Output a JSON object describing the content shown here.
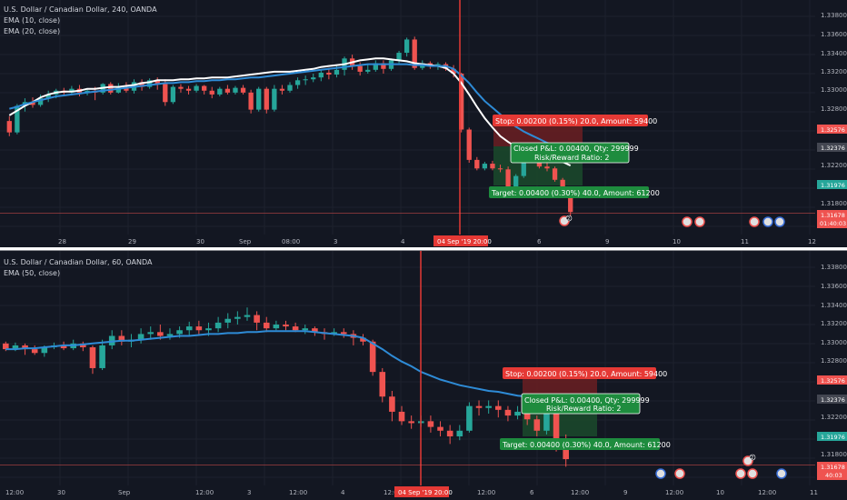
{
  "colors": {
    "background": "#131722",
    "grid": "#1e222d",
    "up": "#26a69a",
    "down": "#ef5350",
    "ema_fast": "#ffffff",
    "ema_slow": "#2e8bd6",
    "stop_zone": "#6b1f22",
    "target_zone": "#1b4a2b",
    "marker_line": "#e53935",
    "separator": "#ffffff"
  },
  "panels": [
    {
      "title": "U.S. Dollar / Canadian Dollar, 240, OANDA",
      "indicators": [
        "EMA (10, close)",
        "EMA (20, close)"
      ],
      "y_ticks": [
        "1.33800",
        "1.33600",
        "1.33400",
        "1.33200",
        "1.33000",
        "1.32800",
        "1.32576",
        "1.32376",
        "1.32200",
        "1.31976",
        "1.31800",
        "1.31678"
      ],
      "price_tags": [
        {
          "text": "1.32576",
          "color": "#ef5350"
        },
        {
          "text": "1.32376",
          "color": "#434651"
        },
        {
          "text": "1.31976",
          "color": "#26a69a"
        },
        {
          "text": "1.31678",
          "color": "#ef5350"
        }
      ],
      "countdown": "01:40:03",
      "x_ticks": [
        "28",
        "29",
        "30",
        "Sep",
        "08:00",
        "3",
        "4",
        "6",
        "9",
        "10",
        "11",
        "12"
      ],
      "date_marker": "04 Sep '19  20:00",
      "stop_label": "Stop: 0.00200 (0.15%) 20.0, Amount: 59400",
      "pnl_label_1": "Closed P&L: 0.00400, Qty: 299999",
      "pnl_label_2": "Risk/Reward Ratio: 2",
      "target_label": "Target: 0.00400 (0.30%) 40.0, Amount: 61200",
      "event_badge": "2"
    },
    {
      "title": "U.S. Dollar / Canadian Dollar, 60, OANDA",
      "indicators": [
        "EMA (50, close)"
      ],
      "y_ticks": [
        "1.33800",
        "1.33600",
        "1.33400",
        "1.33200",
        "1.33000",
        "1.32800",
        "1.32576",
        "1.32376",
        "1.32200",
        "1.31976",
        "1.31800",
        "1.31678"
      ],
      "price_tags": [
        {
          "text": "1.32576",
          "color": "#ef5350"
        },
        {
          "text": "1.32376",
          "color": "#434651"
        },
        {
          "text": "1.31976",
          "color": "#26a69a"
        },
        {
          "text": "1.31678",
          "color": "#ef5350"
        }
      ],
      "countdown": "40:03",
      "x_ticks": [
        "12:00",
        "30",
        "Sep",
        "12:00",
        "3",
        "12:00",
        "4",
        "12:00",
        "12:00",
        "6",
        "12:00",
        "9",
        "12:00",
        "10",
        "12:00",
        "11"
      ],
      "date_marker": "04 Sep '19  20:00",
      "stop_label": "Stop: 0.00200 (0.15%) 20.0, Amount: 59400",
      "pnl_label_1": "Closed P&L: 0.00400, Qty: 299999",
      "pnl_label_2": "Risk/Reward Ratio: 2",
      "target_label": "Target: 0.00400 (0.30%) 40.0, Amount: 61200",
      "event_badge": "2"
    }
  ],
  "chart_data": [
    {
      "type": "candlestick",
      "title": "U.S. Dollar / Canadian Dollar, 240, OANDA",
      "ylim": [
        1.3158,
        1.3392
      ],
      "series": [
        {
          "name": "EMA (10, close)",
          "values": [
            1.3278,
            1.3283,
            1.3288,
            1.3292,
            1.3297,
            1.33,
            1.3302,
            1.3303,
            1.3303,
            1.3304,
            1.3306,
            1.3306,
            1.3307,
            1.3308,
            1.3308,
            1.3309,
            1.331,
            1.3312,
            1.3313,
            1.3315,
            1.3315,
            1.3315,
            1.3316,
            1.3316,
            1.3317,
            1.3317,
            1.3318,
            1.3318,
            1.3318,
            1.3319,
            1.332,
            1.3321,
            1.3322,
            1.3323,
            1.3324,
            1.3324,
            1.3324,
            1.3325,
            1.3326,
            1.3327,
            1.3329,
            1.333,
            1.3331,
            1.3332,
            1.3334,
            1.3336,
            1.3337,
            1.3338,
            1.3338,
            1.3337,
            1.3336,
            1.3335,
            1.3333,
            1.3332,
            1.3331,
            1.333,
            1.3328,
            1.3322,
            1.3312,
            1.33,
            1.3287,
            1.3275,
            1.3265,
            1.3256,
            1.325,
            1.3245,
            1.324,
            1.3238,
            1.3235,
            1.3233,
            1.3233,
            1.3229,
            1.3225
          ]
        },
        {
          "name": "EMA (20, close)",
          "values": [
            1.3285,
            1.3287,
            1.329,
            1.3292,
            1.3294,
            1.3296,
            1.3298,
            1.3299,
            1.33,
            1.3301,
            1.3302,
            1.3303,
            1.3304,
            1.3305,
            1.3306,
            1.3307,
            1.3308,
            1.3309,
            1.331,
            1.3311,
            1.3312,
            1.3312,
            1.3313,
            1.3313,
            1.3314,
            1.3314,
            1.3315,
            1.3315,
            1.3316,
            1.3316,
            1.3317,
            1.3318,
            1.3318,
            1.3319,
            1.332,
            1.3321,
            1.3322,
            1.3323,
            1.3324,
            1.3325,
            1.3326,
            1.3327,
            1.3328,
            1.3329,
            1.333,
            1.3331,
            1.3332,
            1.3332,
            1.3332,
            1.3332,
            1.3332,
            1.3332,
            1.3331,
            1.3331,
            1.333,
            1.333,
            1.333,
            1.3327,
            1.332,
            1.3312,
            1.3302,
            1.3293,
            1.3286,
            1.3279,
            1.3272,
            1.3266,
            1.3261,
            1.3257,
            1.3253,
            1.3249,
            1.3246,
            1.3242,
            1.3238
          ]
        }
      ],
      "candles": [
        [
          1.3272,
          1.326,
          1.3277,
          1.3256
        ],
        [
          1.326,
          1.3288,
          1.329,
          1.3258
        ],
        [
          1.3288,
          1.3292,
          1.3296,
          1.3282
        ],
        [
          1.3292,
          1.3289,
          1.3297,
          1.3286
        ],
        [
          1.3289,
          1.3296,
          1.33,
          1.3287
        ],
        [
          1.3296,
          1.33,
          1.3304,
          1.3292
        ],
        [
          1.33,
          1.3304,
          1.3306,
          1.3296
        ],
        [
          1.3304,
          1.3302,
          1.3307,
          1.3298
        ],
        [
          1.3302,
          1.3306,
          1.3309,
          1.3299
        ],
        [
          1.3306,
          1.3302,
          1.331,
          1.3298
        ],
        [
          1.3302,
          1.3304,
          1.3306,
          1.3299
        ],
        [
          1.3304,
          1.3302,
          1.3308,
          1.3294
        ],
        [
          1.3302,
          1.3311,
          1.3312,
          1.33
        ],
        [
          1.3311,
          1.3302,
          1.3313,
          1.33
        ],
        [
          1.3302,
          1.3307,
          1.3312,
          1.3301
        ],
        [
          1.3307,
          1.3304,
          1.3313,
          1.3302
        ],
        [
          1.3304,
          1.3313,
          1.3316,
          1.3301
        ],
        [
          1.3313,
          1.3308,
          1.3316,
          1.3304
        ],
        [
          1.3308,
          1.3315,
          1.3317,
          1.3306
        ],
        [
          1.3315,
          1.3311,
          1.3318,
          1.3305
        ],
        [
          1.3311,
          1.3292,
          1.3316,
          1.3288
        ],
        [
          1.3292,
          1.3308,
          1.331,
          1.329
        ],
        [
          1.3308,
          1.3306,
          1.3311,
          1.3302
        ],
        [
          1.3306,
          1.3304,
          1.3309,
          1.33
        ],
        [
          1.3304,
          1.3309,
          1.3311,
          1.3302
        ],
        [
          1.3309,
          1.3304,
          1.331,
          1.33
        ],
        [
          1.3304,
          1.33,
          1.3308,
          1.3296
        ],
        [
          1.33,
          1.3306,
          1.3308,
          1.3298
        ],
        [
          1.3306,
          1.3302,
          1.331,
          1.33
        ],
        [
          1.3302,
          1.3307,
          1.3309,
          1.33
        ],
        [
          1.3307,
          1.3302,
          1.331,
          1.33
        ],
        [
          1.3302,
          1.3284,
          1.3305,
          1.328
        ],
        [
          1.3284,
          1.3306,
          1.3308,
          1.3282
        ],
        [
          1.3306,
          1.3284,
          1.3308,
          1.328
        ],
        [
          1.3284,
          1.3306,
          1.331,
          1.3282
        ],
        [
          1.3306,
          1.3304,
          1.331,
          1.33
        ],
        [
          1.3304,
          1.331,
          1.3313,
          1.3302
        ],
        [
          1.331,
          1.3315,
          1.3318,
          1.3306
        ],
        [
          1.3315,
          1.3316,
          1.332,
          1.331
        ],
        [
          1.3316,
          1.3318,
          1.3322,
          1.3313
        ],
        [
          1.3318,
          1.3323,
          1.3326,
          1.3314
        ],
        [
          1.3323,
          1.3321,
          1.3328,
          1.3316
        ],
        [
          1.3321,
          1.3326,
          1.333,
          1.3318
        ],
        [
          1.3326,
          1.3338,
          1.334,
          1.332
        ],
        [
          1.3338,
          1.333,
          1.3342,
          1.3326
        ],
        [
          1.333,
          1.3324,
          1.3334,
          1.332
        ],
        [
          1.3324,
          1.3326,
          1.3332,
          1.3322
        ],
        [
          1.3326,
          1.3333,
          1.3336,
          1.3324
        ],
        [
          1.3333,
          1.3327,
          1.3336,
          1.3322
        ],
        [
          1.3327,
          1.3336,
          1.3338,
          1.3325
        ],
        [
          1.3336,
          1.3344,
          1.3346,
          1.3333
        ],
        [
          1.3344,
          1.3358,
          1.336,
          1.334
        ],
        [
          1.3358,
          1.3328,
          1.3361,
          1.3326
        ],
        [
          1.3328,
          1.3333,
          1.3336,
          1.3326
        ],
        [
          1.3333,
          1.333,
          1.3335,
          1.3327
        ],
        [
          1.333,
          1.3332,
          1.3334,
          1.3326
        ],
        [
          1.3332,
          1.3327,
          1.3334,
          1.3325
        ],
        [
          1.3327,
          1.3322,
          1.3331,
          1.3318
        ],
        [
          1.3322,
          1.3263,
          1.3323,
          1.326
        ],
        [
          1.3263,
          1.3231,
          1.3265,
          1.3228
        ],
        [
          1.3231,
          1.3222,
          1.3234,
          1.322
        ],
        [
          1.3222,
          1.3227,
          1.3229,
          1.322
        ],
        [
          1.3227,
          1.3222,
          1.323,
          1.322
        ],
        [
          1.3222,
          1.3221,
          1.3226,
          1.3218
        ],
        [
          1.3221,
          1.3203,
          1.3224,
          1.32
        ],
        [
          1.3203,
          1.3214,
          1.3216,
          1.32
        ],
        [
          1.3214,
          1.323,
          1.3232,
          1.3212
        ],
        [
          1.323,
          1.3242,
          1.3244,
          1.3228
        ],
        [
          1.3242,
          1.3224,
          1.3244,
          1.3222
        ],
        [
          1.3224,
          1.3222,
          1.3228,
          1.3219
        ],
        [
          1.3222,
          1.321,
          1.3224,
          1.3208
        ],
        [
          1.321,
          1.3199,
          1.3212,
          1.3196
        ],
        [
          1.3199,
          1.3176,
          1.3201,
          1.3171
        ]
      ]
    },
    {
      "type": "candlestick",
      "title": "U.S. Dollar / Canadian Dollar, 60, OANDA",
      "ylim": [
        1.3158,
        1.3392
      ],
      "series": [
        {
          "name": "EMA (50, close)",
          "values": [
            1.3296,
            1.3296,
            1.3297,
            1.3297,
            1.3298,
            1.3299,
            1.33,
            1.33,
            1.3301,
            1.3302,
            1.3303,
            1.3304,
            1.3305,
            1.3305,
            1.3306,
            1.3307,
            1.3308,
            1.3309,
            1.331,
            1.331,
            1.3311,
            1.3312,
            1.3312,
            1.3313,
            1.3313,
            1.3314,
            1.3314,
            1.3315,
            1.3315,
            1.3315,
            1.3315,
            1.3315,
            1.3314,
            1.3313,
            1.3312,
            1.3311,
            1.331,
            1.3308,
            1.3302,
            1.3296,
            1.3289,
            1.3283,
            1.3278,
            1.3272,
            1.3268,
            1.3264,
            1.3261,
            1.3258,
            1.3256,
            1.3254,
            1.3252,
            1.3251,
            1.3249,
            1.3247,
            1.3246,
            1.3244,
            1.3242,
            1.324,
            1.3238
          ]
        }
      ],
      "candles": [
        [
          1.3302,
          1.3296,
          1.3304,
          1.3294
        ],
        [
          1.3296,
          1.33,
          1.3303,
          1.3294
        ],
        [
          1.33,
          1.3296,
          1.3302,
          1.329
        ],
        [
          1.3296,
          1.3292,
          1.33,
          1.329
        ],
        [
          1.3292,
          1.3298,
          1.33,
          1.3288
        ],
        [
          1.3298,
          1.33,
          1.3303,
          1.3296
        ],
        [
          1.33,
          1.3297,
          1.3304,
          1.3295
        ],
        [
          1.3297,
          1.3302,
          1.3306,
          1.3295
        ],
        [
          1.3302,
          1.3298,
          1.3304,
          1.3294
        ],
        [
          1.3298,
          1.3276,
          1.33,
          1.327
        ],
        [
          1.3276,
          1.33,
          1.3306,
          1.3274
        ],
        [
          1.33,
          1.331,
          1.3316,
          1.3296
        ],
        [
          1.331,
          1.3304,
          1.3316,
          1.33
        ],
        [
          1.3304,
          1.3306,
          1.3312,
          1.3298
        ],
        [
          1.3306,
          1.3312,
          1.3318,
          1.3302
        ],
        [
          1.3312,
          1.3314,
          1.332,
          1.3306
        ],
        [
          1.3314,
          1.331,
          1.3322,
          1.3306
        ],
        [
          1.331,
          1.3312,
          1.3318,
          1.3306
        ],
        [
          1.3312,
          1.3316,
          1.332,
          1.3308
        ],
        [
          1.3316,
          1.332,
          1.3325,
          1.331
        ],
        [
          1.332,
          1.3316,
          1.3326,
          1.3312
        ],
        [
          1.3316,
          1.3318,
          1.3324,
          1.331
        ],
        [
          1.3318,
          1.3324,
          1.333,
          1.3314
        ],
        [
          1.3324,
          1.3328,
          1.3334,
          1.3318
        ],
        [
          1.3328,
          1.333,
          1.3336,
          1.3322
        ],
        [
          1.333,
          1.3332,
          1.334,
          1.3326
        ],
        [
          1.3332,
          1.3324,
          1.3336,
          1.3316
        ],
        [
          1.3324,
          1.3318,
          1.333,
          1.3314
        ],
        [
          1.3318,
          1.3322,
          1.3326,
          1.3316
        ],
        [
          1.3322,
          1.332,
          1.3326,
          1.3316
        ],
        [
          1.332,
          1.3316,
          1.3324,
          1.3314
        ],
        [
          1.3316,
          1.3318,
          1.3322,
          1.3312
        ],
        [
          1.3318,
          1.3314,
          1.332,
          1.331
        ],
        [
          1.3314,
          1.3312,
          1.3318,
          1.3306
        ],
        [
          1.3312,
          1.3314,
          1.3318,
          1.331
        ],
        [
          1.3314,
          1.3312,
          1.3318,
          1.3308
        ],
        [
          1.3312,
          1.3308,
          1.3316,
          1.33
        ],
        [
          1.3308,
          1.3304,
          1.3312,
          1.33
        ],
        [
          1.3304,
          1.3272,
          1.3306,
          1.3268
        ],
        [
          1.3272,
          1.3246,
          1.3276,
          1.324
        ],
        [
          1.3246,
          1.323,
          1.3252,
          1.322
        ],
        [
          1.323,
          1.322,
          1.3236,
          1.3216
        ],
        [
          1.322,
          1.3218,
          1.3226,
          1.3212
        ],
        [
          1.3218,
          1.322,
          1.3226,
          1.3214
        ],
        [
          1.322,
          1.3214,
          1.3226,
          1.3208
        ],
        [
          1.3214,
          1.321,
          1.322,
          1.3204
        ],
        [
          1.321,
          1.3204,
          1.3216,
          1.3196
        ],
        [
          1.3204,
          1.321,
          1.3216,
          1.32
        ],
        [
          1.321,
          1.3236,
          1.324,
          1.3208
        ],
        [
          1.3236,
          1.3234,
          1.3242,
          1.3226
        ],
        [
          1.3234,
          1.3236,
          1.3242,
          1.3228
        ],
        [
          1.3236,
          1.3232,
          1.3242,
          1.3224
        ],
        [
          1.3232,
          1.3226,
          1.3236,
          1.322
        ],
        [
          1.3226,
          1.323,
          1.3236,
          1.3222
        ],
        [
          1.323,
          1.3222,
          1.3234,
          1.3216
        ],
        [
          1.3222,
          1.321,
          1.3226,
          1.3204
        ],
        [
          1.321,
          1.323,
          1.3236,
          1.3206
        ],
        [
          1.323,
          1.32,
          1.3232,
          1.3188
        ],
        [
          1.32,
          1.318,
          1.3206,
          1.3172
        ]
      ]
    }
  ]
}
